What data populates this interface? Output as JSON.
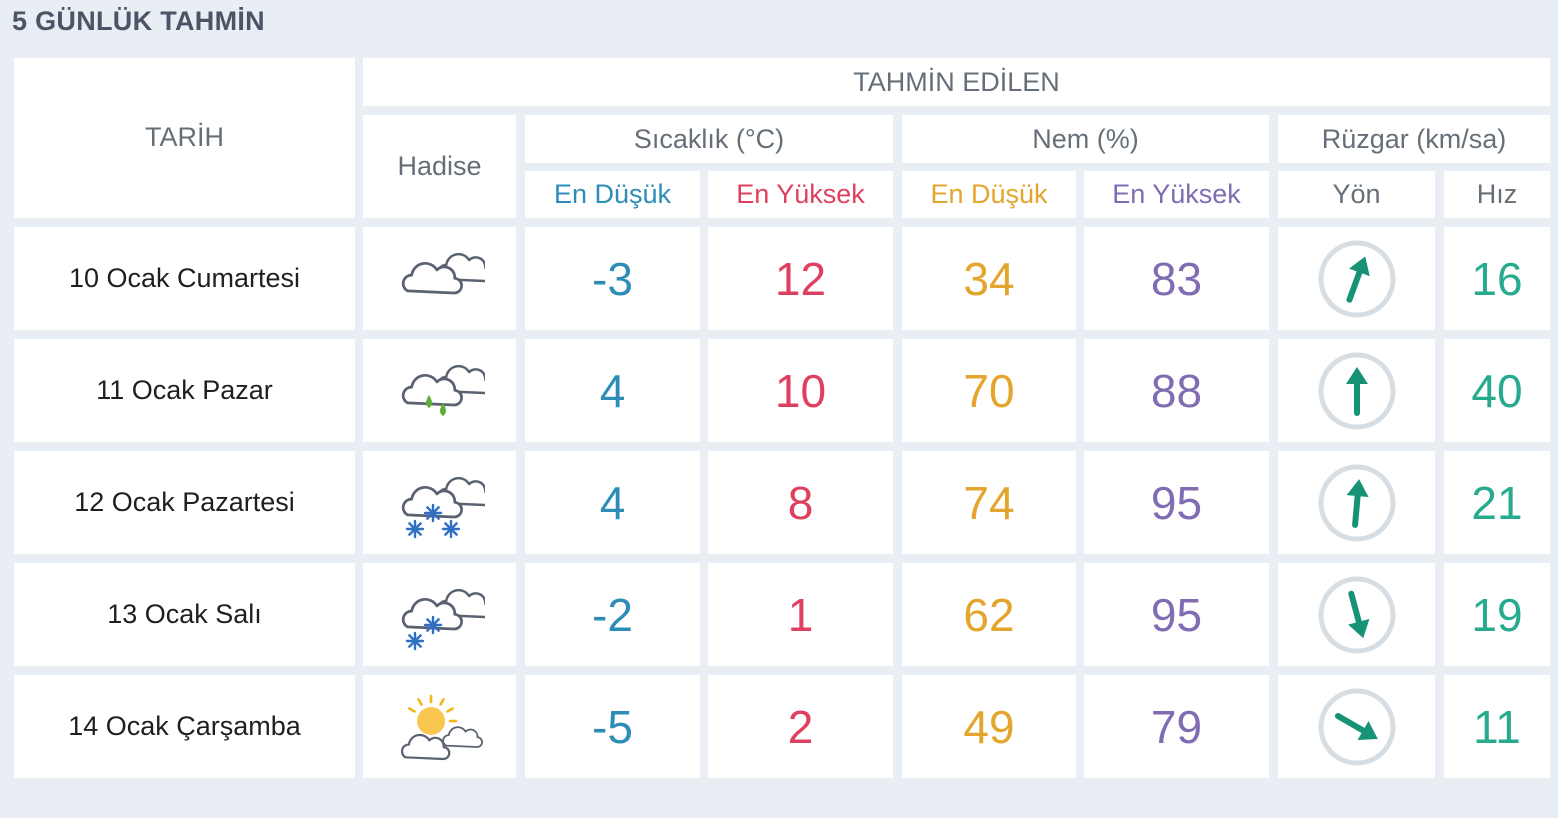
{
  "title": "5 GÜNLÜK TAHMİN",
  "headers": {
    "date": "TARİH",
    "forecast": "TAHMİN EDİLEN",
    "event": "Hadise",
    "temperature": "Sıcaklık (°C)",
    "humidity": "Nem (%)",
    "wind": "Rüzgar (km/sa)",
    "temp_min": "En Düşük",
    "temp_max": "En Yüksek",
    "hum_min": "En Düşük",
    "hum_max": "En Yüksek",
    "wind_dir": "Yön",
    "wind_speed": "Hız"
  },
  "colors": {
    "temp_min": "#2e8db8",
    "temp_max": "#e0405f",
    "hum_min": "#e4a52c",
    "hum_max": "#7f6cb2",
    "wind": "#27ab8f"
  },
  "rows": [
    {
      "date": "10 Ocak Cumartesi",
      "icon": "cloudy-icon",
      "temp_min": "-3",
      "temp_max": "12",
      "hum_min": "34",
      "hum_max": "83",
      "wind_dir_deg": 20,
      "wind_speed": "16"
    },
    {
      "date": "11 Ocak Pazar",
      "icon": "rain-icon",
      "temp_min": "4",
      "temp_max": "10",
      "hum_min": "70",
      "hum_max": "88",
      "wind_dir_deg": 0,
      "wind_speed": "40"
    },
    {
      "date": "12 Ocak Pazartesi",
      "icon": "snow-icon",
      "temp_min": "4",
      "temp_max": "8",
      "hum_min": "74",
      "hum_max": "95",
      "wind_dir_deg": 5,
      "wind_speed": "21"
    },
    {
      "date": "13 Ocak Salı",
      "icon": "light-snow-icon",
      "temp_min": "-2",
      "temp_max": "1",
      "hum_min": "62",
      "hum_max": "95",
      "wind_dir_deg": 165,
      "wind_speed": "19"
    },
    {
      "date": "14 Ocak Çarşamba",
      "icon": "partly-cloudy-icon",
      "temp_min": "-5",
      "temp_max": "2",
      "hum_min": "49",
      "hum_max": "79",
      "wind_dir_deg": 120,
      "wind_speed": "11"
    }
  ]
}
